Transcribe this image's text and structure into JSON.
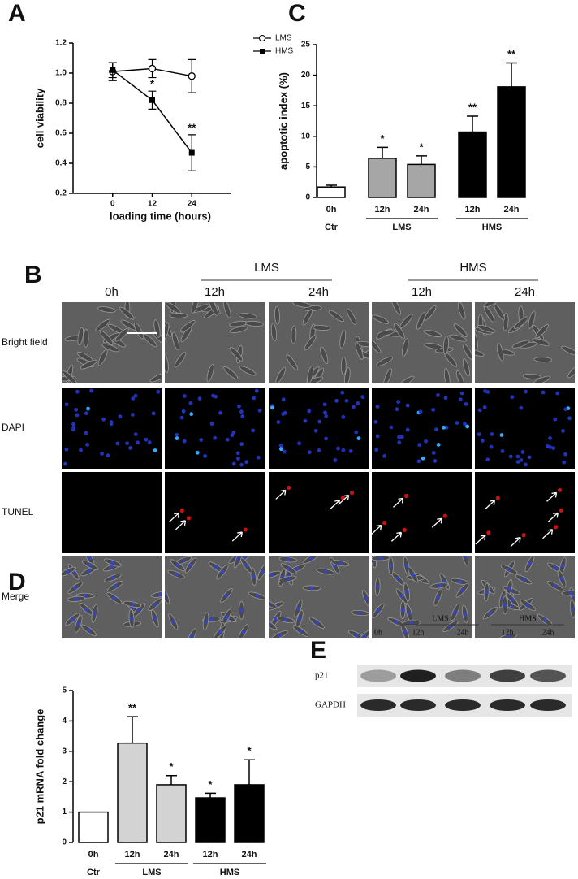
{
  "chart_data": [
    {
      "type": "line",
      "panel_label": "A",
      "y_label": "cell viability",
      "x_label": "loading time (hours)",
      "x": [
        0,
        12,
        24
      ],
      "xlim": [
        -12,
        36
      ],
      "xticks": [
        0,
        12,
        24
      ],
      "ylim": [
        0.2,
        1.2
      ],
      "yticks": [
        0.2,
        0.4,
        0.6,
        0.8,
        {
          "value": 1,
          "label": "1.0"
        },
        1.2
      ],
      "legend": "right",
      "series": [
        {
          "name": "LMS",
          "color": "#000000",
          "marker": "open-circle",
          "values": [
            1.01,
            1.03,
            0.98
          ],
          "errors": [
            0.06,
            0.06,
            0.11
          ]
        },
        {
          "name": "HMS",
          "color": "#000000",
          "marker": "filled-square",
          "values": [
            1.02,
            0.82,
            0.47
          ],
          "errors": [
            0.05,
            0.06,
            0.12
          ],
          "annotations": [
            null,
            "*",
            "**"
          ]
        }
      ]
    },
    {
      "type": "bar",
      "panel_label": "C",
      "y_label": "apoptotic index (%)",
      "ylim": [
        0,
        25
      ],
      "yticks": [
        0,
        5,
        10,
        15,
        20,
        25
      ],
      "groups": [
        {
          "label": "Ctr",
          "categories": [
            "0h"
          ],
          "values": [
            1.7
          ],
          "errors": [
            0.3
          ],
          "color": "#ffffff",
          "annotations": [
            null
          ]
        },
        {
          "label": "LMS",
          "categories": [
            "12h",
            "24h"
          ],
          "values": [
            6.4,
            5.4
          ],
          "errors": [
            1.8,
            1.4
          ],
          "color": "#a6a6a6",
          "annotations": [
            "*",
            "*"
          ]
        },
        {
          "label": "HMS",
          "categories": [
            "12h",
            "24h"
          ],
          "values": [
            10.7,
            18.1
          ],
          "errors": [
            2.6,
            3.9
          ],
          "color": "#000000",
          "annotations": [
            "**",
            "**"
          ]
        }
      ]
    },
    {
      "type": "bar",
      "panel_label": "D",
      "y_label": "p21 mRNA fold change",
      "ylim": [
        0,
        5
      ],
      "yticks": [
        0,
        1,
        2,
        3,
        4,
        5
      ],
      "groups": [
        {
          "label": "Ctr",
          "categories": [
            "0h"
          ],
          "values": [
            1
          ],
          "errors": [
            null
          ],
          "color": "#ffffff",
          "annotations": [
            null
          ]
        },
        {
          "label": "LMS",
          "categories": [
            "12h",
            "24h"
          ],
          "values": [
            3.27,
            1.9
          ],
          "errors": [
            0.87,
            0.3
          ],
          "color": "#d3d3d3",
          "annotations": [
            "**",
            "*"
          ]
        },
        {
          "label": "HMS",
          "categories": [
            "12h",
            "24h"
          ],
          "values": [
            1.47,
            1.9
          ],
          "errors": [
            0.15,
            0.82
          ],
          "color": "#000000",
          "annotations": [
            "*",
            "*"
          ]
        }
      ]
    }
  ],
  "micrographs": {
    "panel_label": "B",
    "groups": [
      "LMS",
      "HMS"
    ],
    "columns": [
      "0h",
      "12h",
      "24h",
      "12h",
      "24h"
    ],
    "rows": [
      "Bright field",
      "DAPI",
      "TUNEL",
      "Merge"
    ]
  },
  "western_blot": {
    "panel_label": "E",
    "groups": [
      "LMS",
      "HMS"
    ],
    "columns": [
      "0h",
      "12h",
      "24h",
      "12h",
      "24h"
    ],
    "rows": [
      "p21",
      "GAPDH"
    ]
  }
}
